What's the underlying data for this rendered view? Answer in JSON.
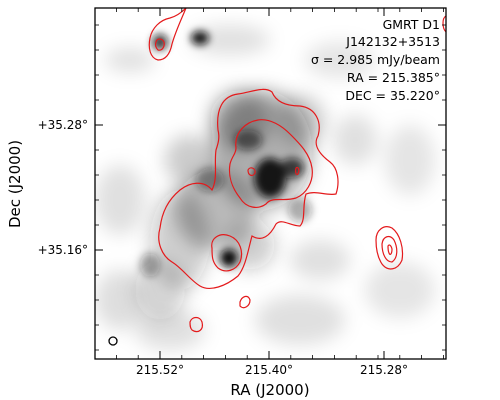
{
  "figure": {
    "ylabel": "Dec (J2000)",
    "xlabel": "RA (J2000)",
    "ytick_labels": [
      "+35.28°",
      "+35.16°"
    ],
    "xtick_labels": [
      "215.52°",
      "215.40°",
      "215.28°"
    ]
  },
  "annotation": {
    "survey": "GMRT D1",
    "source": "J142132+3513",
    "sigma": "σ = 2.985 mJy/beam",
    "ra": "RA = 215.385°",
    "dec": "DEC = 35.220°"
  },
  "colors": {
    "image_ink": "#1a1a1a",
    "contour": "#e41a1c",
    "frame": "#000000",
    "background": "#ffffff"
  },
  "icons": {
    "beam": "beam-ellipse-icon"
  }
}
